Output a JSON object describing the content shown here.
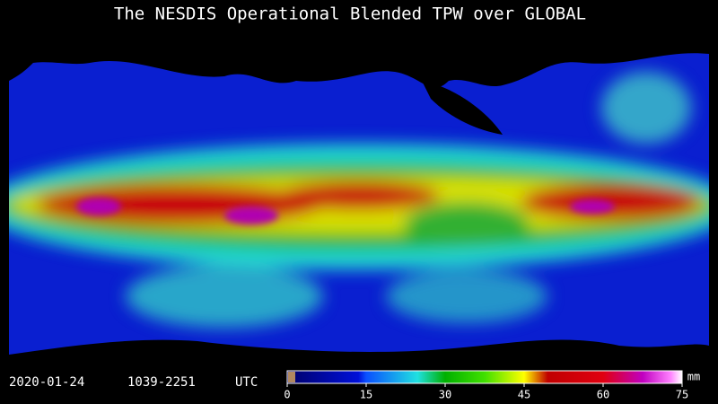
{
  "title": "The NESDIS Operational Blended TPW over GLOBAL",
  "date": "2020-01-24",
  "time_range": "1039-2251",
  "timezone": "UTC",
  "colorbar": {
    "ticks": [
      0,
      15,
      30,
      45,
      60,
      75
    ],
    "unit": "mm"
  }
}
